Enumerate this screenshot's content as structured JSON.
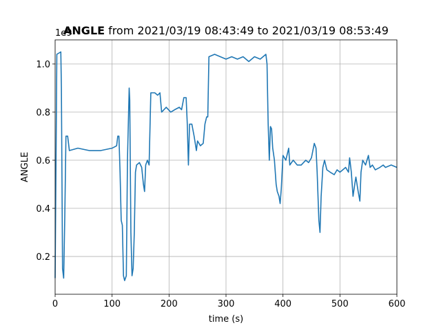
{
  "chart_data": {
    "type": "line",
    "title_bold": "ANGLE",
    "title": "from 2021/03/19 08:43:49 to 2021/03/19 08:53:49",
    "x_label": "time (s)",
    "y_label": "ANGLE",
    "y_offset_label": "1e9",
    "x": [
      0,
      3,
      10,
      11,
      13,
      15,
      17,
      19,
      22,
      25,
      40,
      60,
      80,
      100,
      108,
      110,
      112,
      114,
      116,
      118,
      120,
      122,
      125,
      127,
      130,
      131,
      133,
      135,
      137,
      139,
      141,
      143,
      148,
      152,
      155,
      157,
      159,
      162,
      165,
      168,
      175,
      180,
      184,
      187,
      195,
      203,
      210,
      218,
      222,
      226,
      230,
      232,
      234,
      236,
      240,
      244,
      248,
      250,
      255,
      260,
      263,
      266,
      268,
      270,
      280,
      290,
      300,
      310,
      320,
      330,
      340,
      350,
      360,
      365,
      370,
      372,
      374,
      376,
      378,
      380,
      382,
      385,
      388,
      390,
      393,
      395,
      397,
      400,
      405,
      410,
      412,
      418,
      425,
      432,
      440,
      445,
      450,
      455,
      458,
      460,
      463,
      465,
      467,
      470,
      473,
      477,
      483,
      490,
      495,
      500,
      510,
      515,
      517,
      520,
      523,
      526,
      528,
      532,
      535,
      537,
      540,
      545,
      550,
      553,
      557,
      562,
      570,
      576,
      580,
      590,
      600
    ],
    "series": [
      {
        "name": "ANGLE",
        "color": "#1f77b4",
        "values": [
          0.11,
          1.04,
          1.05,
          0.9,
          0.15,
          0.11,
          0.37,
          0.7,
          0.7,
          0.64,
          0.65,
          0.64,
          0.64,
          0.65,
          0.66,
          0.7,
          0.7,
          0.55,
          0.35,
          0.33,
          0.12,
          0.1,
          0.12,
          0.6,
          0.9,
          0.85,
          0.3,
          0.12,
          0.15,
          0.3,
          0.55,
          0.58,
          0.59,
          0.57,
          0.5,
          0.47,
          0.58,
          0.6,
          0.58,
          0.88,
          0.88,
          0.87,
          0.88,
          0.8,
          0.82,
          0.8,
          0.81,
          0.82,
          0.81,
          0.86,
          0.86,
          0.75,
          0.58,
          0.75,
          0.75,
          0.7,
          0.64,
          0.68,
          0.66,
          0.67,
          0.75,
          0.78,
          0.78,
          1.03,
          1.04,
          1.03,
          1.02,
          1.03,
          1.02,
          1.03,
          1.01,
          1.03,
          1.02,
          1.03,
          1.04,
          1.0,
          0.75,
          0.6,
          0.74,
          0.73,
          0.65,
          0.6,
          0.5,
          0.47,
          0.45,
          0.42,
          0.48,
          0.62,
          0.6,
          0.65,
          0.58,
          0.6,
          0.58,
          0.58,
          0.6,
          0.59,
          0.61,
          0.67,
          0.65,
          0.55,
          0.35,
          0.3,
          0.45,
          0.57,
          0.6,
          0.56,
          0.55,
          0.54,
          0.56,
          0.55,
          0.57,
          0.55,
          0.61,
          0.55,
          0.45,
          0.5,
          0.53,
          0.47,
          0.43,
          0.55,
          0.6,
          0.58,
          0.62,
          0.57,
          0.58,
          0.56,
          0.57,
          0.58,
          0.57,
          0.58,
          0.57
        ]
      }
    ],
    "xlim": [
      0,
      600
    ],
    "xticks": [
      0,
      100,
      200,
      300,
      400,
      500,
      600
    ],
    "ylim": [
      0.043,
      1.1
    ],
    "yticks": [
      {
        "value": 0.2,
        "label": "0.2"
      },
      {
        "value": 0.4,
        "label": "0.4"
      },
      {
        "value": 0.6,
        "label": "0.6"
      },
      {
        "value": 0.8,
        "label": "0.8"
      },
      {
        "value": 1.0,
        "label": "1.0"
      }
    ],
    "grid": true
  }
}
